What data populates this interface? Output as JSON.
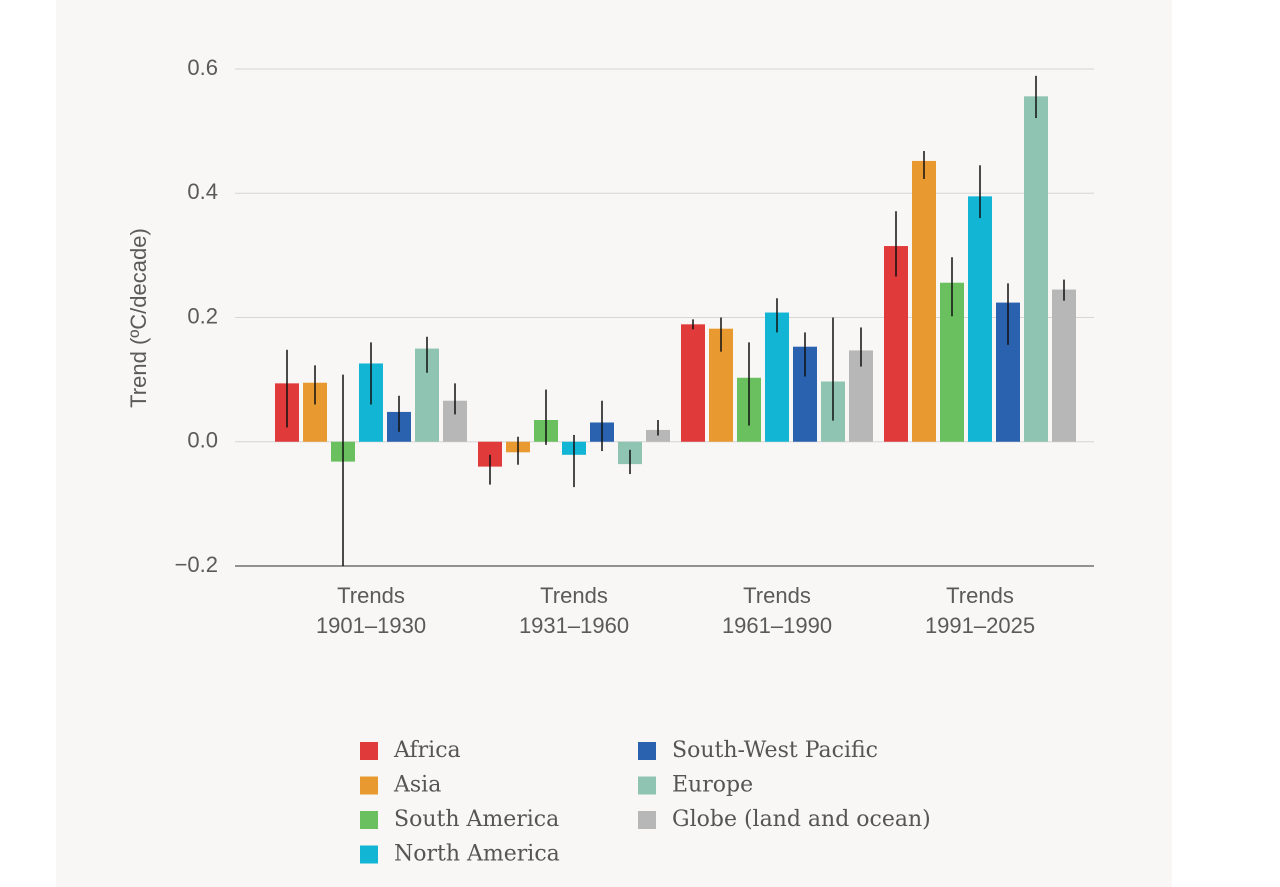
{
  "chart_data": {
    "type": "bar",
    "y_label": "Trend (ºC/decade)",
    "categories": [
      "Trends 1901–1930",
      "Trends 1931–1960",
      "Trends 1961–1990",
      "Trends 1991–2025"
    ],
    "ylim": [
      -0.2,
      0.6
    ],
    "yticks": [
      {
        "value": -0.2,
        "label": "−0.2"
      },
      {
        "value": 0,
        "label": "0.0"
      },
      0.2,
      0.4,
      0.6
    ],
    "grid": true,
    "series": [
      {
        "name": "Africa",
        "color": "#e03a3a",
        "values": [
          0.094,
          -0.04,
          0.189,
          0.315
        ],
        "lower": [
          0.023,
          -0.069,
          0.181,
          0.266
        ],
        "upper": [
          0.148,
          -0.021,
          0.197,
          0.371
        ]
      },
      {
        "name": "Asia",
        "color": "#e89a30",
        "values": [
          0.095,
          -0.017,
          0.182,
          0.452
        ],
        "lower": [
          0.06,
          -0.037,
          0.145,
          0.423
        ],
        "upper": [
          0.123,
          0.008,
          0.2,
          0.468
        ]
      },
      {
        "name": "South America",
        "color": "#6abf5e",
        "values": [
          -0.032,
          0.035,
          0.103,
          0.256
        ],
        "lower": [
          -0.2,
          -0.005,
          0.026,
          0.202
        ],
        "upper": [
          0.108,
          0.084,
          0.16,
          0.297
        ]
      },
      {
        "name": "North America",
        "color": "#12b5d4",
        "values": [
          0.126,
          -0.021,
          0.208,
          0.395
        ],
        "lower": [
          0.06,
          -0.073,
          0.176,
          0.36
        ],
        "upper": [
          0.16,
          0.011,
          0.231,
          0.445
        ]
      },
      {
        "name": "South-West Pacific",
        "color": "#2a62b0",
        "values": [
          0.048,
          0.031,
          0.153,
          0.224
        ],
        "lower": [
          0.016,
          -0.015,
          0.105,
          0.156
        ],
        "upper": [
          0.074,
          0.066,
          0.176,
          0.255
        ]
      },
      {
        "name": "Europe",
        "color": "#8fc4b2",
        "values": [
          0.15,
          -0.036,
          0.097,
          0.556
        ],
        "lower": [
          0.111,
          -0.052,
          0.034,
          0.521
        ],
        "upper": [
          0.169,
          -0.013,
          0.2,
          0.589
        ]
      },
      {
        "name": "Globe (land and ocean)",
        "color": "#b7b7b7",
        "values": [
          0.066,
          0.019,
          0.147,
          0.245
        ],
        "lower": [
          0.044,
          0.01,
          0.121,
          0.227
        ],
        "upper": [
          0.094,
          0.035,
          0.184,
          0.261
        ]
      }
    ]
  }
}
